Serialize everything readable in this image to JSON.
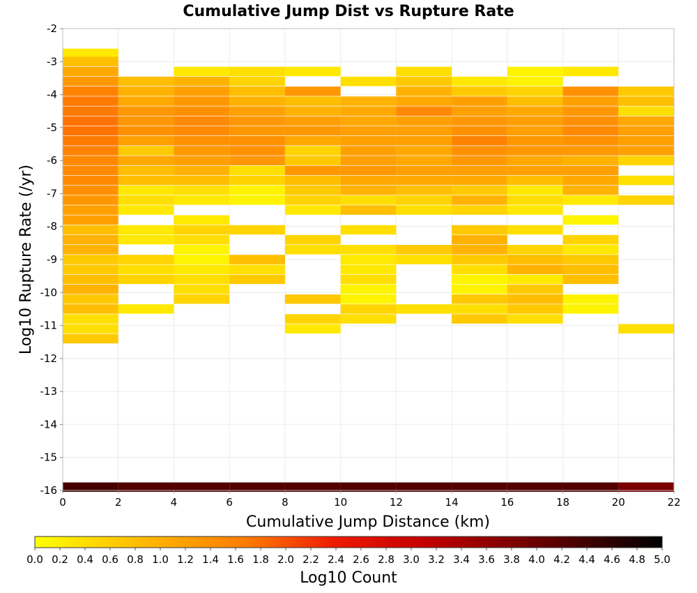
{
  "chart_data": {
    "type": "heatmap",
    "title": "Cumulative Jump Dist vs Rupture Rate",
    "xlabel": "Cumulative Jump Distance (km)",
    "ylabel": "Log10 Rupture Rate (/yr)",
    "xlim": [
      0,
      22
    ],
    "ylim": [
      -16,
      -2
    ],
    "x_ticks": [
      0,
      2,
      4,
      6,
      8,
      10,
      12,
      14,
      16,
      18,
      20,
      22
    ],
    "y_ticks": [
      -2,
      -3,
      -4,
      -5,
      -6,
      -7,
      -8,
      -9,
      -10,
      -11,
      -12,
      -13,
      -14,
      -15,
      -16
    ],
    "x_bin_width": 2,
    "y_bin_height": 0.2857,
    "colorbar": {
      "label": "Log10 Count",
      "range": [
        0,
        5
      ],
      "ticks": [
        "0.0",
        "0.2",
        "0.4",
        "0.6",
        "0.8",
        "1.0",
        "1.2",
        "1.4",
        "1.6",
        "1.8",
        "2.0",
        "2.2",
        "2.4",
        "2.6",
        "2.8",
        "3.0",
        "3.2",
        "3.4",
        "3.6",
        "3.8",
        "4.0",
        "4.2",
        "4.4",
        "4.6",
        "4.8",
        "5.0"
      ],
      "colormap": [
        "#ffff00",
        "#ffa500",
        "#ff6600",
        "#ee0000",
        "#aa0000",
        "#550000",
        "#000000"
      ]
    },
    "cells": [
      {
        "x": 1,
        "ys": [
          -2.75,
          -3.0,
          -3.3,
          -3.6,
          -3.9,
          -4.2,
          -4.5,
          -4.8,
          -5.1,
          -5.4,
          -5.7,
          -6.0,
          -6.3,
          -6.6,
          -6.9,
          -7.2,
          -7.5,
          -7.8,
          -8.1,
          -8.4,
          -8.7,
          -9.0,
          -9.3,
          -9.6,
          -9.9,
          -10.2,
          -10.5,
          -10.8,
          -11.1,
          -11.4,
          -15.9
        ],
        "vals": [
          0.2,
          0.6,
          0.8,
          1.0,
          1.3,
          1.4,
          1.4,
          1.5,
          1.5,
          1.4,
          1.3,
          1.2,
          1.2,
          1.2,
          1.1,
          1.0,
          0.9,
          0.9,
          0.6,
          0.7,
          0.7,
          0.5,
          0.5,
          0.6,
          0.7,
          0.5,
          0.6,
          0.3,
          0.3,
          0.5,
          4.3
        ]
      },
      {
        "x": 3,
        "ys": [
          -3.6,
          -3.9,
          -4.2,
          -4.5,
          -4.8,
          -5.1,
          -5.4,
          -5.7,
          -6.0,
          -6.3,
          -6.6,
          -6.9,
          -7.2,
          -7.5,
          -8.1,
          -8.4,
          -9.0,
          -9.3,
          -9.6,
          -10.5,
          -15.9
        ],
        "vals": [
          0.6,
          0.7,
          0.8,
          1.0,
          1.0,
          1.1,
          0.9,
          0.5,
          0.8,
          0.6,
          0.6,
          0.2,
          0.3,
          0.2,
          0.2,
          0.2,
          0.4,
          0.3,
          0.4,
          0.2,
          4.2
        ]
      },
      {
        "x": 5,
        "ys": [
          -3.3,
          -3.6,
          -3.9,
          -4.2,
          -4.5,
          -4.8,
          -5.1,
          -5.4,
          -5.7,
          -6.0,
          -6.3,
          -6.6,
          -6.9,
          -7.2,
          -7.8,
          -8.1,
          -8.4,
          -8.7,
          -9.0,
          -9.3,
          -9.6,
          -9.9,
          -10.2,
          -15.9
        ],
        "vals": [
          0.2,
          0.7,
          0.9,
          1.0,
          1.1,
          1.2,
          1.2,
          1.1,
          1.0,
          0.9,
          0.7,
          0.6,
          0.3,
          0.2,
          0.2,
          0.4,
          0.3,
          0.1,
          0.1,
          0.2,
          0.3,
          0.3,
          0.4,
          4.2
        ]
      },
      {
        "x": 7,
        "ys": [
          -3.3,
          -3.6,
          -3.9,
          -4.2,
          -4.5,
          -4.8,
          -5.1,
          -5.4,
          -5.7,
          -6.0,
          -6.3,
          -6.6,
          -6.9,
          -7.2,
          -8.1,
          -9.0,
          -9.3,
          -9.6,
          -15.9
        ],
        "vals": [
          0.3,
          0.4,
          0.6,
          0.7,
          0.9,
          1.0,
          1.0,
          1.1,
          1.1,
          1.0,
          0.3,
          0.4,
          0.1,
          0.1,
          0.4,
          0.6,
          0.3,
          0.5,
          4.2
        ]
      },
      {
        "x": 9,
        "ys": [
          -3.3,
          -3.9,
          -4.2,
          -4.5,
          -4.8,
          -5.1,
          -5.4,
          -5.7,
          -6.0,
          -6.3,
          -6.6,
          -6.9,
          -7.2,
          -7.5,
          -8.4,
          -8.7,
          -10.2,
          -10.8,
          -11.1,
          -15.9
        ],
        "vals": [
          0.2,
          1.0,
          0.6,
          0.7,
          0.9,
          1.0,
          0.8,
          0.4,
          0.5,
          1.0,
          0.6,
          0.5,
          0.4,
          0.2,
          0.4,
          0.3,
          0.5,
          0.4,
          0.2,
          4.2
        ]
      },
      {
        "x": 11,
        "ys": [
          -3.6,
          -4.2,
          -4.5,
          -4.8,
          -5.1,
          -5.4,
          -5.7,
          -6.0,
          -6.3,
          -6.6,
          -6.9,
          -7.2,
          -7.5,
          -8.1,
          -8.7,
          -9.0,
          -9.3,
          -9.6,
          -9.9,
          -10.2,
          -10.5,
          -10.8,
          -15.9
        ],
        "vals": [
          0.3,
          0.7,
          0.8,
          0.8,
          0.9,
          0.9,
          0.9,
          0.9,
          1.0,
          0.8,
          0.7,
          0.3,
          0.6,
          0.3,
          0.3,
          0.2,
          0.2,
          0.3,
          0.1,
          0.1,
          0.4,
          0.3,
          4.2
        ]
      },
      {
        "x": 13,
        "ys": [
          -3.3,
          -3.6,
          -3.9,
          -4.2,
          -4.5,
          -4.8,
          -5.1,
          -5.4,
          -5.7,
          -6.0,
          -6.3,
          -6.6,
          -6.9,
          -7.2,
          -7.5,
          -8.7,
          -9.0,
          -10.5,
          -15.9
        ],
        "vals": [
          0.3,
          0.5,
          0.7,
          0.8,
          1.2,
          0.9,
          0.9,
          0.9,
          0.8,
          0.8,
          0.9,
          0.8,
          0.6,
          0.4,
          0.3,
          0.5,
          0.3,
          0.3,
          4.2
        ]
      },
      {
        "x": 15,
        "ys": [
          -3.6,
          -3.9,
          -4.2,
          -4.5,
          -4.8,
          -5.1,
          -5.4,
          -5.7,
          -6.0,
          -6.3,
          -6.6,
          -6.9,
          -7.2,
          -7.5,
          -8.1,
          -8.4,
          -8.7,
          -9.0,
          -9.3,
          -9.6,
          -9.9,
          -10.2,
          -10.5,
          -10.8,
          -15.9
        ],
        "vals": [
          0.2,
          0.5,
          0.9,
          0.9,
          1.0,
          1.1,
          1.3,
          1.1,
          1.0,
          0.9,
          0.8,
          0.5,
          0.7,
          0.4,
          0.5,
          0.7,
          0.7,
          0.5,
          0.3,
          0.1,
          0.1,
          0.5,
          0.3,
          0.5,
          4.2
        ]
      },
      {
        "x": 17,
        "ys": [
          -3.3,
          -3.6,
          -3.9,
          -4.2,
          -4.5,
          -4.8,
          -5.1,
          -5.4,
          -5.7,
          -6.0,
          -6.3,
          -6.6,
          -6.9,
          -7.2,
          -7.5,
          -8.1,
          -8.7,
          -9.0,
          -9.3,
          -9.6,
          -9.9,
          -10.2,
          -10.5,
          -10.8,
          -15.9
        ],
        "vals": [
          0.1,
          0.1,
          0.4,
          0.6,
          0.8,
          0.9,
          0.9,
          1.0,
          1.0,
          0.8,
          0.9,
          0.6,
          0.2,
          0.3,
          0.2,
          0.3,
          0.4,
          0.6,
          0.7,
          0.2,
          0.5,
          0.6,
          0.5,
          0.3,
          4.2
        ]
      },
      {
        "x": 19,
        "ys": [
          -3.3,
          -3.9,
          -4.2,
          -4.5,
          -4.8,
          -5.1,
          -5.4,
          -5.7,
          -6.0,
          -6.3,
          -6.6,
          -6.9,
          -7.2,
          -7.8,
          -8.4,
          -8.7,
          -9.0,
          -9.3,
          -9.6,
          -10.2,
          -10.5,
          -15.9
        ],
        "vals": [
          0.2,
          1.1,
          0.9,
          1.0,
          1.1,
          1.2,
          1.1,
          1.0,
          0.7,
          0.9,
          0.8,
          0.7,
          0.2,
          0.1,
          0.4,
          0.2,
          0.5,
          0.6,
          0.6,
          0.1,
          0.1,
          4.2
        ]
      },
      {
        "x": 21,
        "ys": [
          -3.9,
          -4.2,
          -4.5,
          -4.8,
          -5.1,
          -5.4,
          -5.7,
          -6.0,
          -6.6,
          -7.2,
          -11.1,
          -15.9
        ],
        "vals": [
          0.5,
          0.6,
          0.3,
          0.8,
          0.9,
          0.9,
          0.9,
          0.4,
          0.3,
          0.4,
          0.3,
          3.8
        ]
      }
    ]
  }
}
